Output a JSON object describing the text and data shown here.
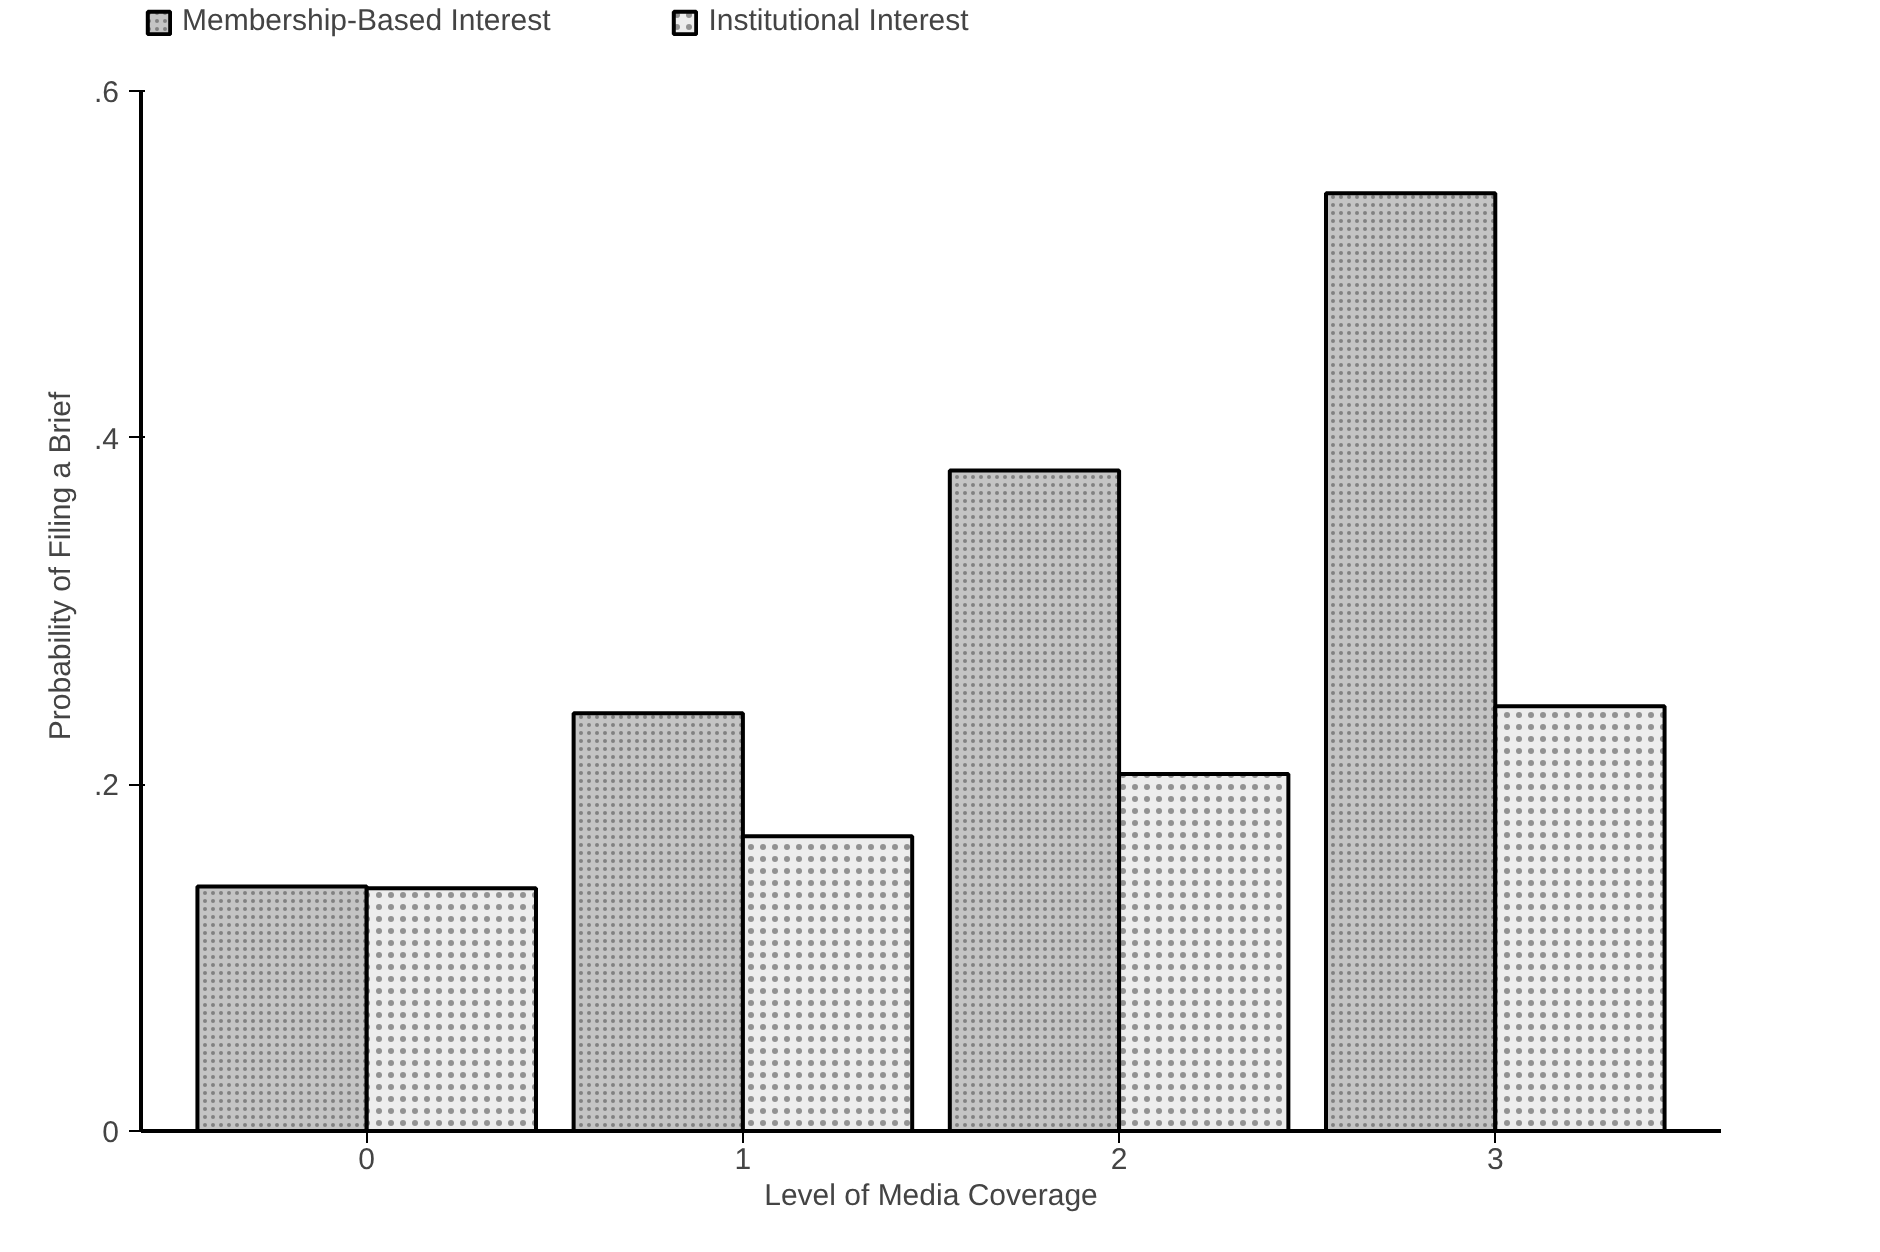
{
  "chart_data": {
    "type": "bar",
    "xlabel": "Level of Media Coverage",
    "ylabel": "Probability of Filing a Brief",
    "categories": [
      "0",
      "1",
      "2",
      "3"
    ],
    "series": [
      {
        "name": "Membership-Based Interest",
        "color": "#c4c4c4",
        "values": [
          0.141,
          0.241,
          0.381,
          0.541
        ]
      },
      {
        "name": "Institutional Interest",
        "color": "#ededed",
        "values": [
          0.14,
          0.17,
          0.206,
          0.245
        ]
      }
    ],
    "ylim": [
      0,
      0.6
    ],
    "yticks": [
      0,
      {
        "value": 0.2,
        "label": ".2"
      },
      {
        "value": 0.4,
        "label": ".4"
      },
      {
        "value": 0.6,
        "label": ".6"
      }
    ],
    "grid": false,
    "legend": "top left"
  }
}
